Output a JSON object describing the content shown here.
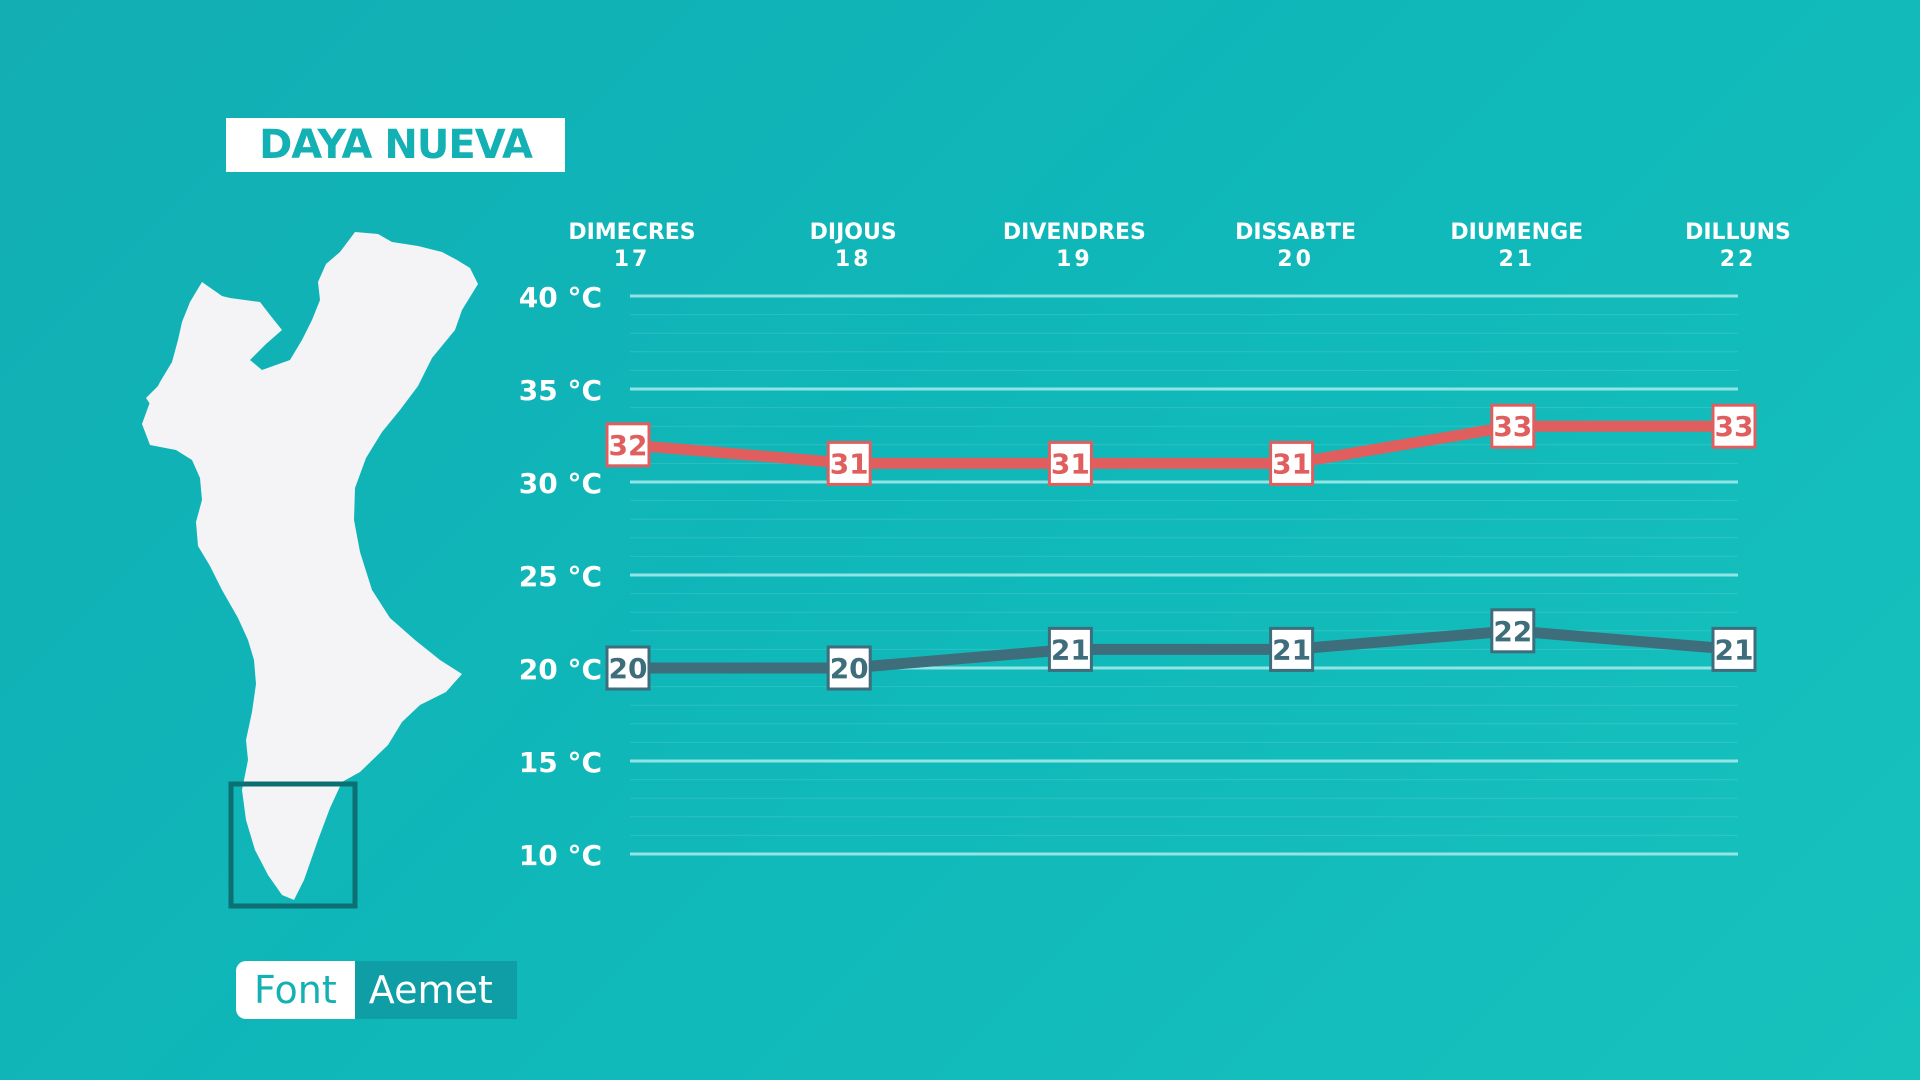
{
  "title": "DAYA NUEVA",
  "source": {
    "label": "Font",
    "value": "Aemet"
  },
  "colors": {
    "max_line": "#e05e5e",
    "min_line": "#3e6d7c",
    "grid": "#a8ecec",
    "text": "#ffffff",
    "map_fill": "#f4f4f6",
    "map_highlight": "#0b6f74"
  },
  "chart_data": {
    "type": "line",
    "categories": [
      {
        "day": "DIMECRES",
        "date": "17"
      },
      {
        "day": "DIJOUS",
        "date": "18"
      },
      {
        "day": "DIVENDRES",
        "date": "19"
      },
      {
        "day": "DISSABTE",
        "date": "20"
      },
      {
        "day": "DIUMENGE",
        "date": "21"
      },
      {
        "day": "DILLUNS",
        "date": "22"
      }
    ],
    "series": [
      {
        "key": "max",
        "values": [
          32,
          31,
          31,
          31,
          33,
          33
        ]
      },
      {
        "key": "min",
        "values": [
          20,
          20,
          21,
          21,
          22,
          21
        ]
      }
    ],
    "yticks": [
      "10 °C",
      "15 °C",
      "20 °C",
      "25 °C",
      "30 °C",
      "35 °C",
      "40 °C"
    ],
    "ylim": [
      10,
      40
    ],
    "grid": true
  }
}
